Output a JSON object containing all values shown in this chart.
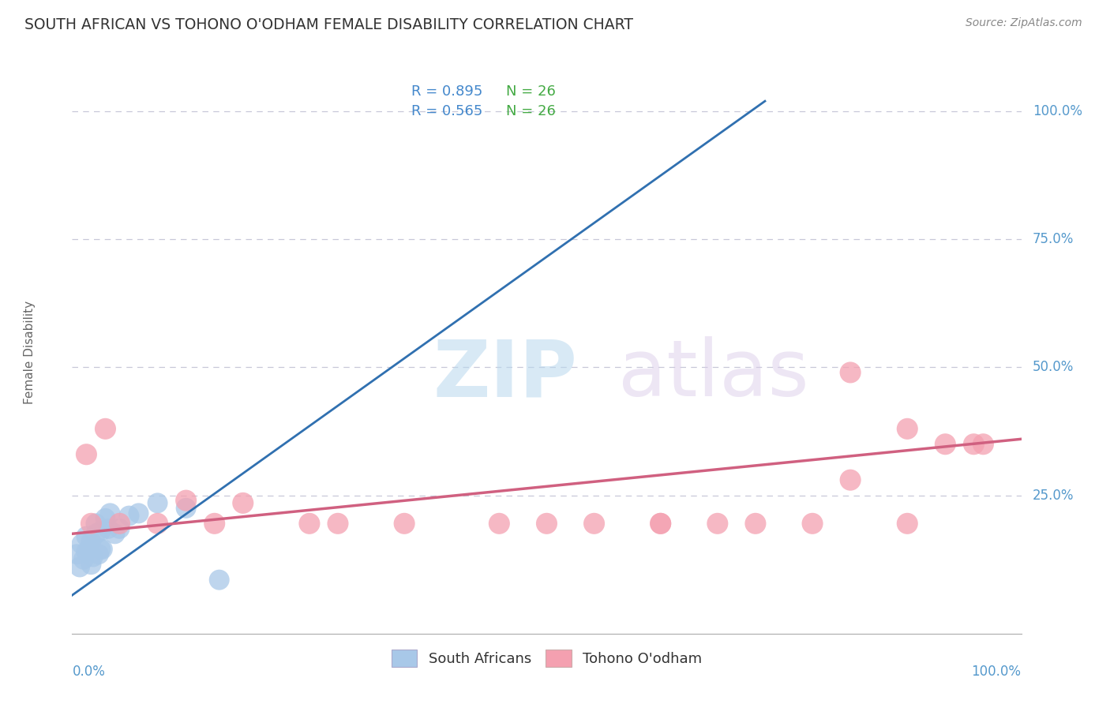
{
  "title": "SOUTH AFRICAN VS TOHONO O'ODHAM FEMALE DISABILITY CORRELATION CHART",
  "source": "Source: ZipAtlas.com",
  "ylabel": "Female Disability",
  "legend_r1": "R = 0.895",
  "legend_n1": "N = 26",
  "legend_r2": "R = 0.565",
  "legend_n2": "N = 26",
  "watermark_zip": "ZIP",
  "watermark_atlas": "atlas",
  "blue_scatter_color": "#a8c8e8",
  "pink_scatter_color": "#f4a0b0",
  "blue_line_color": "#3070b0",
  "pink_line_color": "#d06080",
  "title_color": "#333333",
  "axis_label_color": "#5599cc",
  "legend_r_color": "#4488cc",
  "legend_n_color": "#44aa44",
  "grid_color": "#c8c8d8",
  "background_color": "#ffffff",
  "sa_x": [
    0.005,
    0.008,
    0.01,
    0.012,
    0.015,
    0.015,
    0.018,
    0.02,
    0.02,
    0.022,
    0.025,
    0.025,
    0.028,
    0.03,
    0.03,
    0.032,
    0.035,
    0.038,
    0.04,
    0.045,
    0.05,
    0.06,
    0.07,
    0.09,
    0.12,
    0.155
  ],
  "sa_y": [
    0.135,
    0.11,
    0.155,
    0.125,
    0.17,
    0.14,
    0.145,
    0.16,
    0.115,
    0.13,
    0.195,
    0.175,
    0.135,
    0.18,
    0.145,
    0.145,
    0.205,
    0.185,
    0.215,
    0.175,
    0.185,
    0.21,
    0.215,
    0.235,
    0.225,
    0.085
  ],
  "to_x": [
    0.015,
    0.02,
    0.035,
    0.05,
    0.09,
    0.12,
    0.18,
    0.25,
    0.35,
    0.45,
    0.5,
    0.55,
    0.62,
    0.68,
    0.72,
    0.78,
    0.82,
    0.88,
    0.92,
    0.96,
    0.15,
    0.28,
    0.62,
    0.82,
    0.88,
    0.95
  ],
  "to_y": [
    0.33,
    0.195,
    0.38,
    0.195,
    0.195,
    0.24,
    0.235,
    0.195,
    0.195,
    0.195,
    0.195,
    0.195,
    0.195,
    0.195,
    0.195,
    0.195,
    0.28,
    0.195,
    0.35,
    0.35,
    0.195,
    0.195,
    0.195,
    0.49,
    0.38,
    0.35
  ],
  "blue_line_x0": 0.0,
  "blue_line_y0": 0.055,
  "blue_line_x1": 0.73,
  "blue_line_y1": 1.02,
  "pink_line_x0": 0.0,
  "pink_line_y0": 0.175,
  "pink_line_x1": 1.0,
  "pink_line_y1": 0.36,
  "xlim_min": 0.0,
  "xlim_max": 1.0,
  "ylim_min": -0.02,
  "ylim_max": 1.08
}
